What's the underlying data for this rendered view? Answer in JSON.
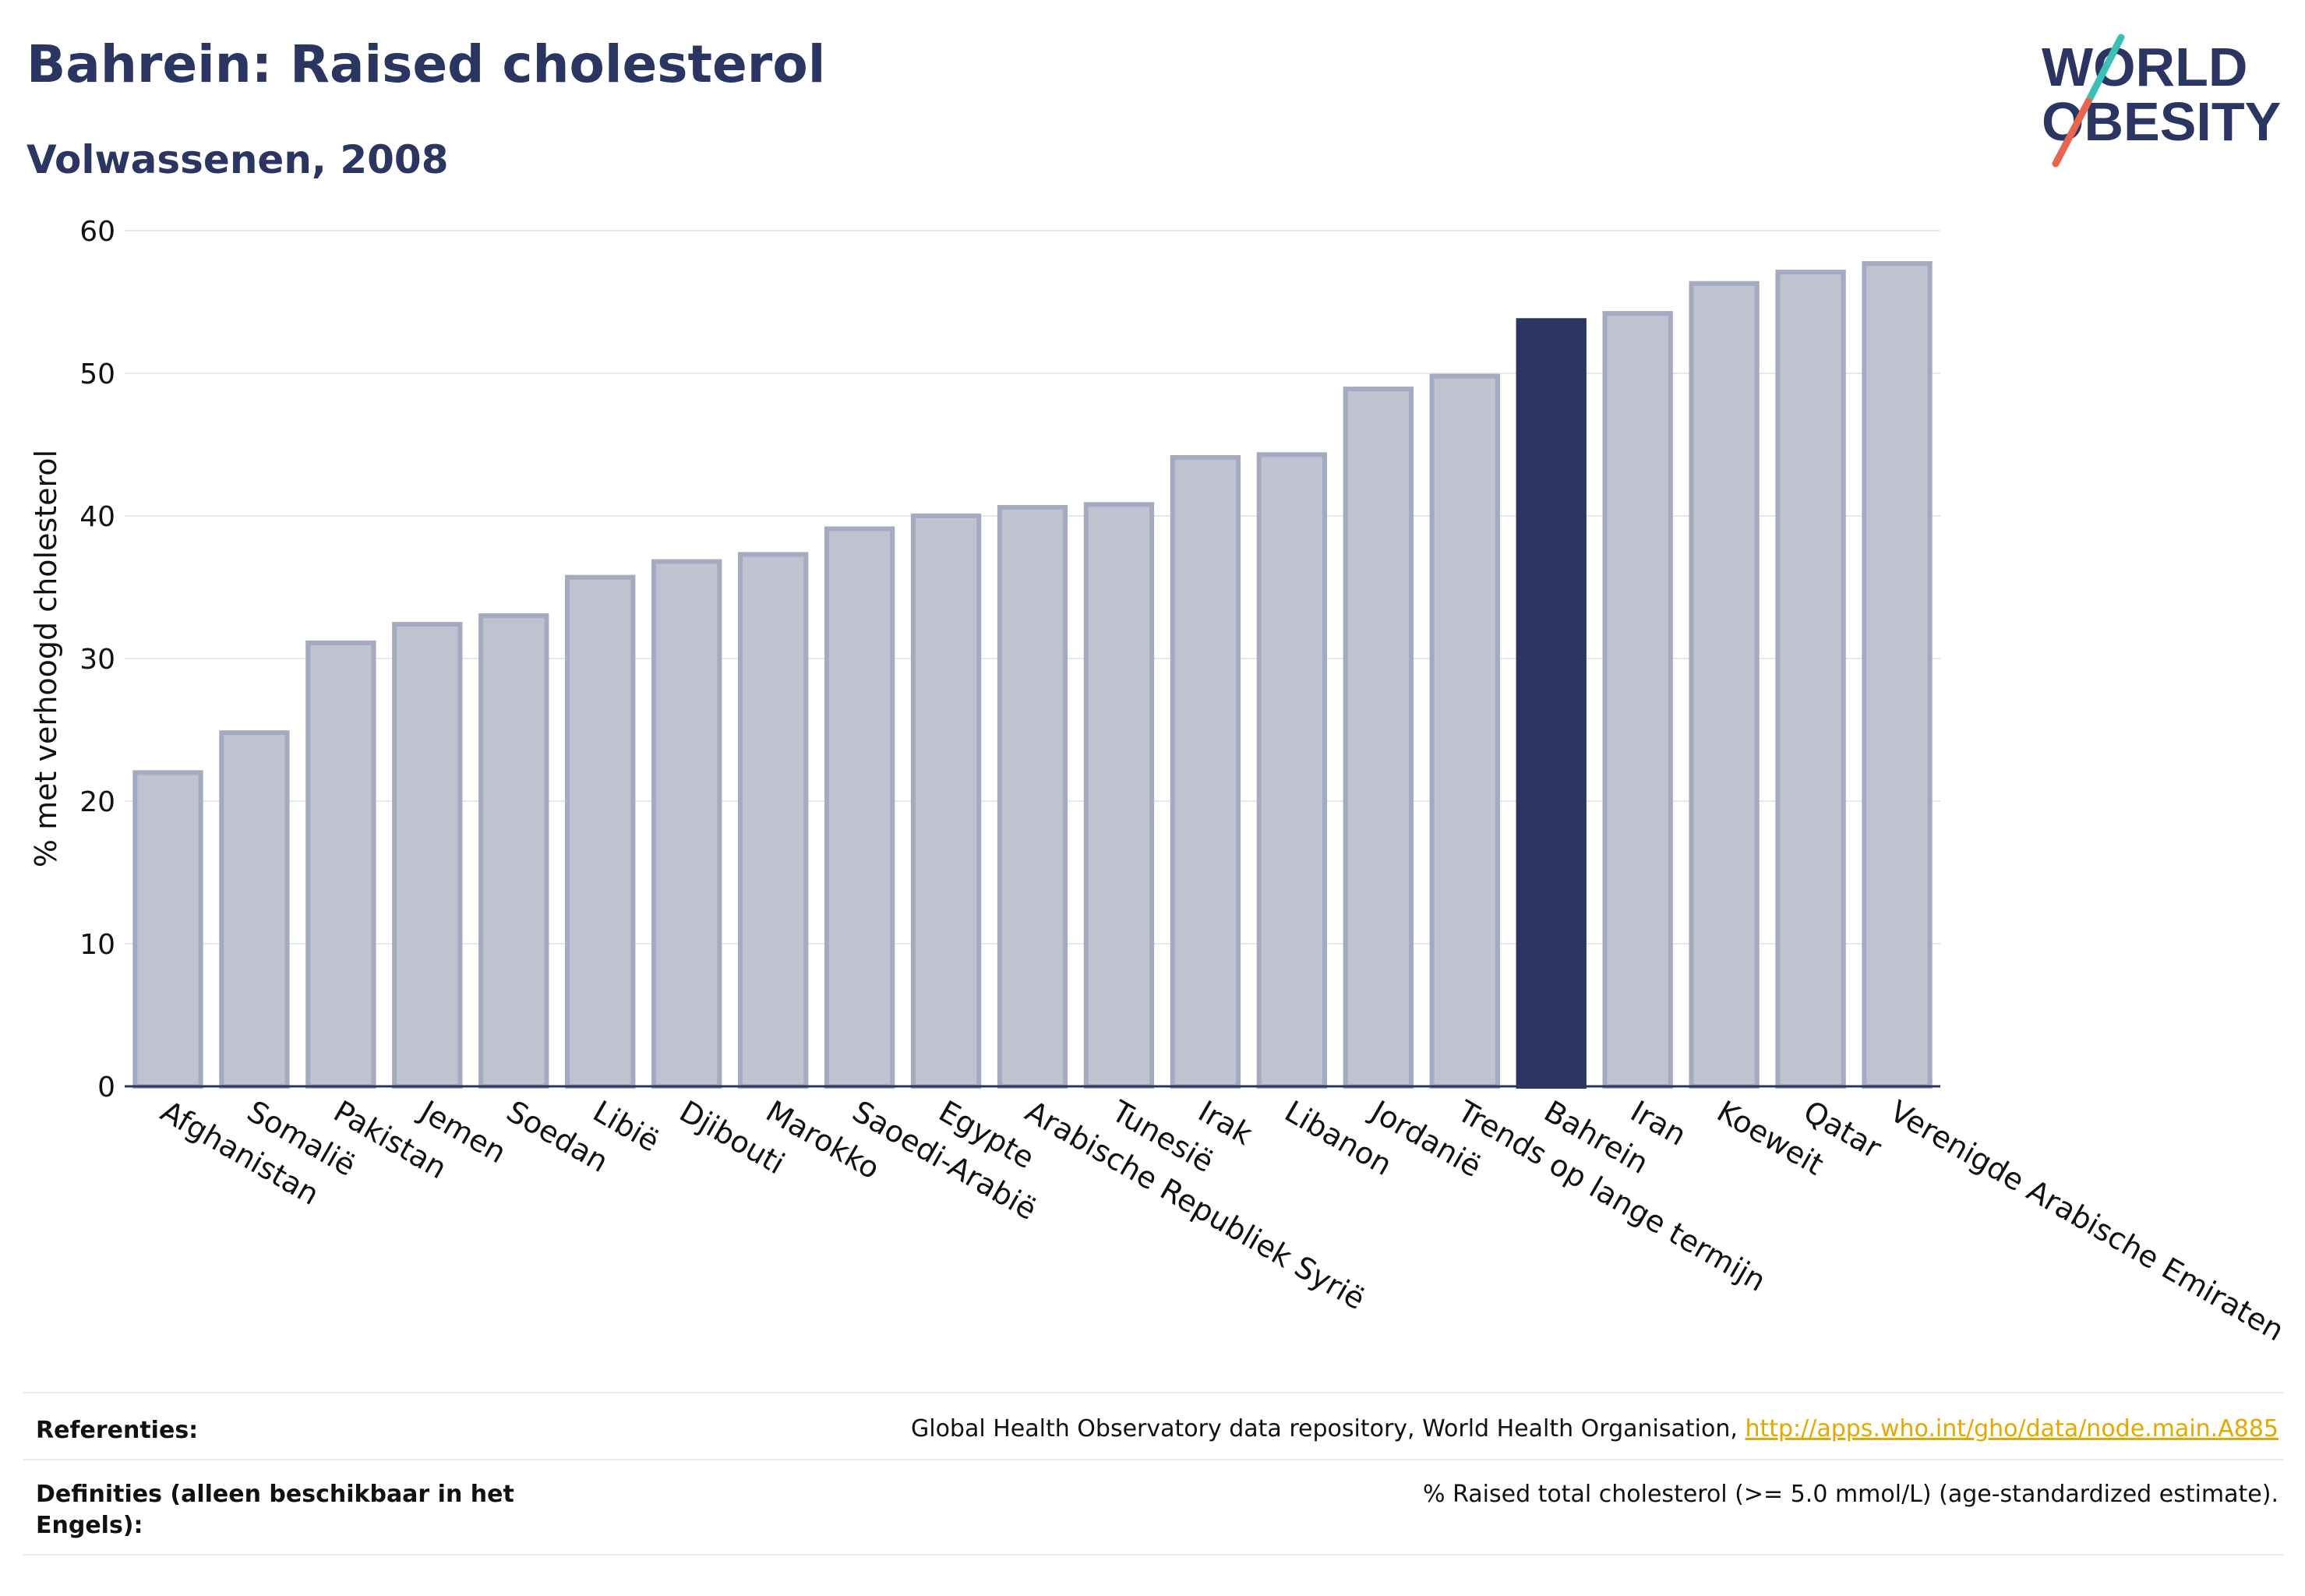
{
  "header": {
    "title": "Bahrein: Raised cholesterol",
    "subtitle": "Volwassenen, 2008",
    "logo_line1": "WORLD",
    "logo_line2": "OBESITY"
  },
  "chart_data": {
    "type": "bar",
    "ylabel": "% met verhoogd cholesterol",
    "ylim": [
      0,
      60
    ],
    "yticks": [
      0,
      10,
      20,
      30,
      40,
      50,
      60
    ],
    "grid": true,
    "categories": [
      "Afghanistan",
      "Somalië",
      "Pakistan",
      "Jemen",
      "Soedan",
      "Libië",
      "Djibouti",
      "Marokko",
      "Saoedi-Arabië",
      "Egypte",
      "Arabische Republiek Syrië",
      "Tunesië",
      "Irak",
      "Libanon",
      "Jordanië",
      "Trends op lange termijn",
      "Bahrein",
      "Iran",
      "Koeweit",
      "Qatar",
      "Verenigde Arabische Emiraten"
    ],
    "values": [
      22.0,
      24.8,
      31.1,
      32.4,
      33.0,
      35.7,
      36.8,
      37.3,
      39.1,
      40.0,
      40.6,
      40.8,
      44.1,
      44.3,
      48.9,
      49.8,
      53.7,
      54.2,
      56.3,
      57.1,
      57.7
    ],
    "highlight": "Bahrein",
    "colors": {
      "bar": "#bfc3d0",
      "bar_border": "#a4aac0",
      "highlight": "#2a3561",
      "grid": "#e6e8ef",
      "axis": "#2a3561"
    }
  },
  "footer": {
    "references_label": "Referenties:",
    "references_text": "Global Health Observatory data repository, World Health Organisation,",
    "references_link": "http://apps.who.int/gho/data/node.main.A885",
    "definitions_label": "Definities (alleen beschikbaar in het Engels):",
    "definitions_text": "% Raised total cholesterol (>= 5.0 mmol/L) (age-standardized estimate)."
  },
  "colors": {
    "brand": "#2a3561",
    "accent_teal": "#3cbfb6",
    "accent_red": "#e8664f",
    "link": "#e6a700"
  }
}
